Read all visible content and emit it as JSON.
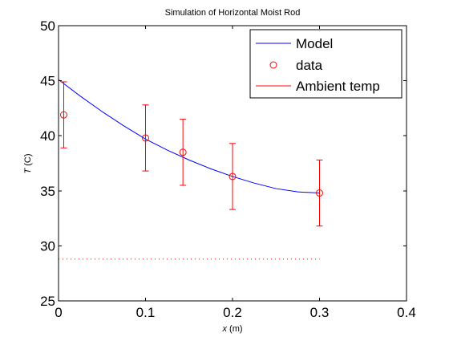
{
  "chart_data": {
    "type": "scatter",
    "title": "Simulation of Horizontal Moist Rod",
    "xlabel_var": "x",
    "xlabel_unit": "(m)",
    "ylabel_var": "T",
    "ylabel_unit": "(C)",
    "xlim": [
      0,
      0.4
    ],
    "ylim": [
      25,
      50
    ],
    "xticks": [
      0,
      0.1,
      0.2,
      0.3,
      0.4
    ],
    "yticks": [
      25,
      30,
      35,
      40,
      45,
      50
    ],
    "grid": false,
    "legend_position": "top-right",
    "legend": [
      "Model",
      "data",
      "Ambient temp"
    ],
    "series": [
      {
        "name": "Model",
        "style": "line",
        "color": "#0000ff",
        "x": [
          0,
          0.025,
          0.05,
          0.075,
          0.1,
          0.125,
          0.15,
          0.175,
          0.2,
          0.225,
          0.25,
          0.275,
          0.3
        ],
        "y": [
          45.1,
          43.6,
          42.2,
          40.9,
          39.7,
          38.7,
          37.8,
          37.0,
          36.3,
          35.7,
          35.2,
          34.9,
          34.8
        ]
      },
      {
        "name": "data",
        "style": "markers",
        "color": "#ff0000",
        "x": [
          0.006,
          0.1,
          0.143,
          0.2,
          0.3
        ],
        "y": [
          41.9,
          39.8,
          38.5,
          36.3,
          34.8
        ],
        "error": [
          3.0,
          3.0,
          3.0,
          3.0,
          3.0
        ]
      },
      {
        "name": "Ambient temp",
        "style": "dotted-line",
        "color": "#ff0000",
        "x": [
          0,
          0.3
        ],
        "y": [
          28.8,
          28.8
        ]
      }
    ]
  }
}
